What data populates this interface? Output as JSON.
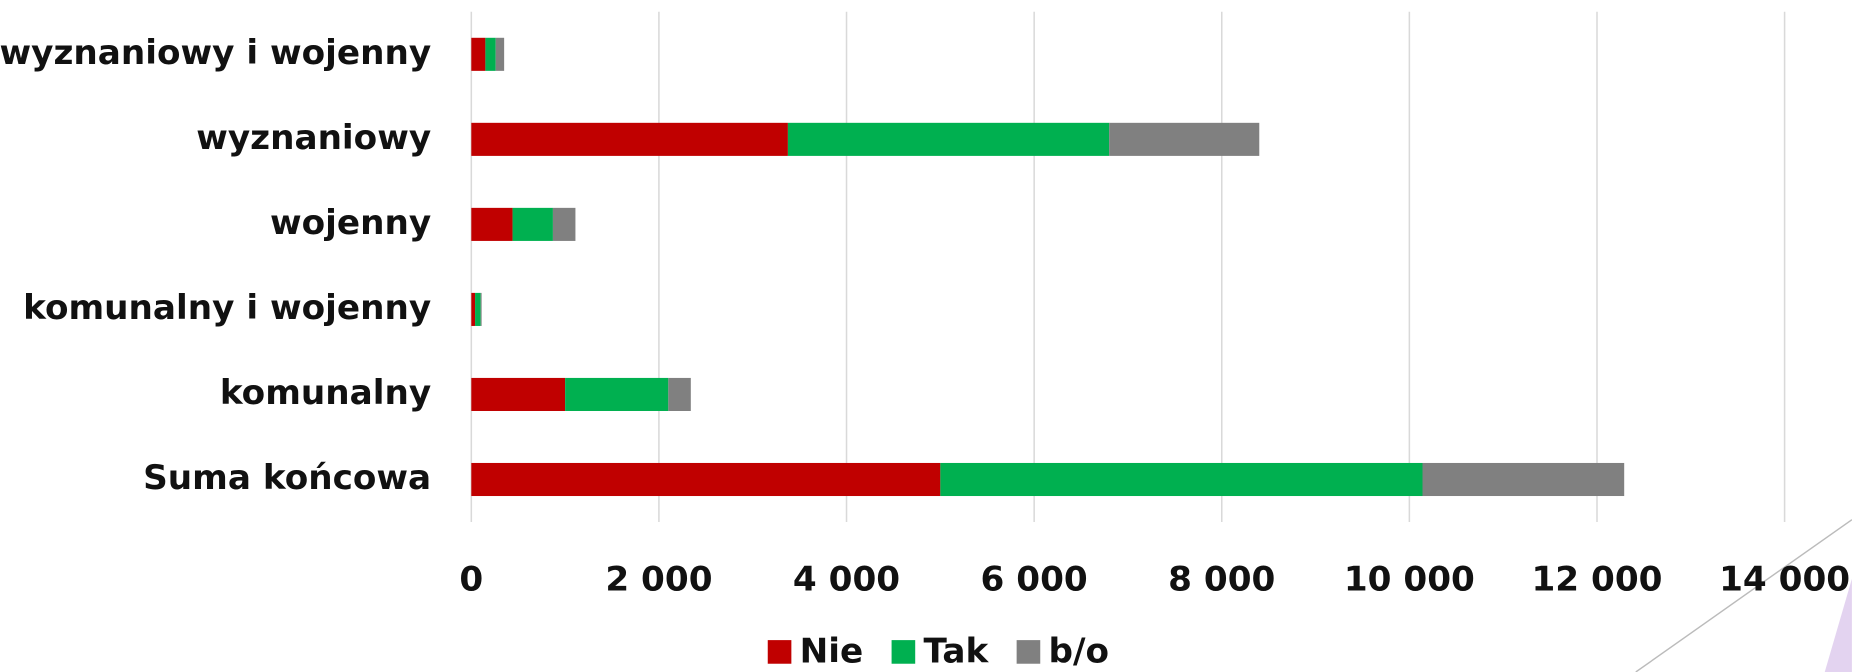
{
  "chart_data": {
    "type": "bar",
    "orientation": "horizontal",
    "stacked": true,
    "categories": [
      "wyznaniowy i wojenny",
      "wyznaniowy",
      "wojenny",
      "komunalny i wojenny",
      "komunalny",
      "Suma końcowa"
    ],
    "series": [
      {
        "name": "Nie",
        "color": "#c00000",
        "values": [
          150,
          3375,
          440,
          40,
          1000,
          5000
        ]
      },
      {
        "name": "Tak",
        "color": "#00b050",
        "values": [
          110,
          3425,
          430,
          60,
          1100,
          5140
        ]
      },
      {
        "name": "b/o",
        "color": "#808080",
        "values": [
          90,
          1600,
          240,
          10,
          240,
          2150
        ]
      }
    ],
    "xlim": [
      0,
      14000
    ],
    "xticks": [
      0,
      {
        "value": 2000,
        "label": "2 000"
      },
      {
        "value": 4000,
        "label": "4 000"
      },
      {
        "value": 6000,
        "label": "6 000"
      },
      {
        "value": 8000,
        "label": "8 000"
      },
      {
        "value": 10000,
        "label": "10 000"
      },
      {
        "value": 12000,
        "label": "12 000"
      },
      {
        "value": 14000,
        "label": "14 000"
      }
    ],
    "grid": true,
    "legend": "bottom"
  }
}
